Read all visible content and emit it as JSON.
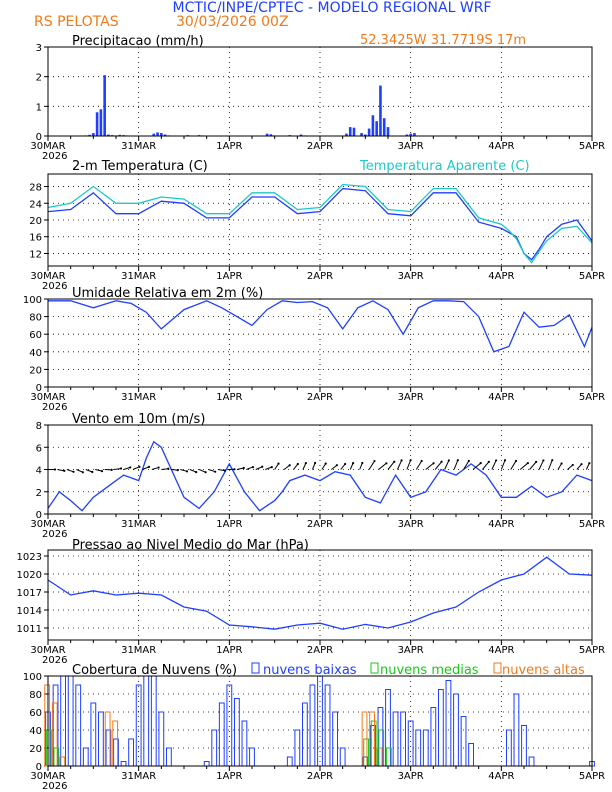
{
  "header": {
    "title": "MCTIC/INPE/CPTEC - MODELO REGIONAL WRF",
    "station": "RS PELOTAS",
    "run": "30/03/2026 00Z",
    "coords": "52.3425W 31.7719S 17m"
  },
  "colors": {
    "title": "#1f3fff",
    "orange": "#f07a1a",
    "blue": "#1f3fff",
    "cyan": "#1ec8c8",
    "green": "#19c819",
    "black": "#000000"
  },
  "chart_data": [
    {
      "type": "bar",
      "title": "Precipitacao (mm/h)",
      "ylim": [
        0,
        3
      ],
      "yticks": [
        0,
        1,
        2,
        3
      ],
      "xticklabels": [
        "30MAR",
        "31MAR",
        "1APR",
        "2APR",
        "3APR",
        "4APR",
        "5APR"
      ],
      "xyear": "2026",
      "x_hours": [
        10,
        11,
        12,
        13,
        14,
        15,
        16,
        17,
        18,
        19,
        20,
        21,
        28,
        29,
        30,
        31,
        32,
        37,
        40,
        41,
        58,
        59,
        60,
        64,
        67,
        68,
        79,
        80,
        81,
        83,
        84,
        85,
        86,
        87,
        88,
        89,
        90,
        95,
        96,
        97
      ],
      "values": [
        0.02,
        0.04,
        0.1,
        0.8,
        0.9,
        2.05,
        0.05,
        0.03,
        0.02,
        0.04,
        0.03,
        0.02,
        0.08,
        0.12,
        0.1,
        0.05,
        0.02,
        0.03,
        0.03,
        0.02,
        0.08,
        0.06,
        0.02,
        0.03,
        0.05,
        0.02,
        0.08,
        0.3,
        0.28,
        0.1,
        0.05,
        0.25,
        0.7,
        0.5,
        1.7,
        0.6,
        0.3,
        0.05,
        0.08,
        0.1
      ]
    },
    {
      "type": "line",
      "title": "2-m Temperatura (C)",
      "legend": "Temperatura Aparente (C)",
      "ylim": [
        9,
        31
      ],
      "yticks": [
        12,
        16,
        20,
        24,
        28
      ],
      "xticklabels": [
        "30MAR",
        "31MAR",
        "1APR",
        "2APR",
        "3APR",
        "4APR",
        "5APR"
      ],
      "xyear": "2026",
      "x_hours": [
        0,
        6,
        12,
        18,
        24,
        30,
        36,
        42,
        48,
        54,
        60,
        66,
        72,
        78,
        84,
        90,
        96,
        102,
        108,
        114,
        120,
        122,
        124,
        126,
        128,
        130,
        132,
        136,
        140,
        144
      ],
      "series": [
        {
          "name": "2-m Temperatura",
          "values": [
            22,
            22.5,
            26.5,
            21.5,
            21.5,
            24.5,
            24,
            20.5,
            20.5,
            25.5,
            25.5,
            21.5,
            22,
            27.5,
            27,
            21.5,
            21,
            26.5,
            26.5,
            19.5,
            18,
            17,
            16,
            12,
            10.5,
            13,
            16,
            19,
            20,
            15
          ]
        },
        {
          "name": "Temperatura Aparente",
          "values": [
            23,
            24,
            28,
            24,
            24,
            25.5,
            25,
            21.5,
            21.5,
            26.5,
            26.5,
            22.5,
            23,
            28.5,
            28,
            22.5,
            22,
            27.5,
            27.5,
            20.5,
            19,
            17.5,
            15.5,
            12,
            9.8,
            12.5,
            15,
            18,
            18.5,
            14.5
          ]
        }
      ]
    },
    {
      "type": "line",
      "title": "Umidade Relativa em 2m (%)",
      "ylim": [
        0,
        100
      ],
      "yticks": [
        0,
        20,
        40,
        60,
        80,
        100
      ],
      "xticklabels": [
        "30MAR",
        "31MAR",
        "1APR",
        "2APR",
        "3APR",
        "4APR",
        "5APR"
      ],
      "xyear": "2026",
      "x_hours": [
        0,
        6,
        12,
        18,
        22,
        26,
        30,
        36,
        42,
        46,
        50,
        54,
        58,
        62,
        66,
        70,
        74,
        78,
        82,
        86,
        90,
        94,
        98,
        102,
        106,
        110,
        114,
        118,
        122,
        126,
        130,
        134,
        138,
        142,
        144
      ],
      "series": [
        {
          "name": "Umidade Relativa",
          "values": [
            98,
            98,
            90,
            98,
            95,
            85,
            66,
            88,
            98,
            90,
            80,
            70,
            88,
            98,
            96,
            97,
            90,
            66,
            90,
            98,
            88,
            60,
            90,
            98,
            98,
            97,
            80,
            40,
            46,
            85,
            68,
            70,
            82,
            46,
            68
          ]
        }
      ]
    },
    {
      "type": "line",
      "title": "Vento em 10m (m/s)",
      "ylim": [
        0,
        8
      ],
      "yticks": [
        0,
        2,
        4,
        6,
        8
      ],
      "xticklabels": [
        "30MAR",
        "31MAR",
        "1APR",
        "2APR",
        "3APR",
        "4APR",
        "5APR"
      ],
      "xyear": "2026",
      "x_hours": [
        0,
        3,
        6,
        9,
        12,
        16,
        20,
        24,
        26,
        28,
        30,
        34,
        36,
        40,
        44,
        48,
        52,
        56,
        60,
        62,
        64,
        68,
        72,
        76,
        80,
        84,
        88,
        92,
        96,
        100,
        104,
        108,
        112,
        116,
        120,
        124,
        128,
        132,
        136,
        140,
        144
      ],
      "series": [
        {
          "name": "Vento 10m",
          "values": [
            0.5,
            2,
            1.2,
            0.3,
            1.5,
            2.5,
            3.5,
            3,
            5,
            6.5,
            6,
            3,
            1.5,
            0.5,
            2,
            4.5,
            2,
            0.3,
            1.2,
            2,
            3,
            3.5,
            3,
            3.8,
            3.5,
            1.5,
            1,
            3.5,
            1.5,
            2,
            4,
            3.5,
            4.5,
            3.5,
            1.5,
            1.5,
            2.5,
            1.5,
            2,
            3.5,
            3
          ]
        }
      ]
    },
    {
      "type": "line",
      "title": "Pressao ao Nivel Medio do Mar (hPa)",
      "ylim": [
        1009,
        1024
      ],
      "yticks": [
        1011,
        1014,
        1017,
        1020,
        1023
      ],
      "xticklabels": [
        "30MAR",
        "31MAR",
        "1APR",
        "2APR",
        "3APR",
        "4APR",
        "5APR"
      ],
      "xyear": "2026",
      "x_hours": [
        0,
        6,
        12,
        18,
        24,
        30,
        36,
        42,
        48,
        54,
        60,
        66,
        72,
        78,
        84,
        90,
        96,
        102,
        108,
        114,
        120,
        126,
        132,
        138,
        144
      ],
      "series": [
        {
          "name": "Pressao",
          "values": [
            1019,
            1016.5,
            1017.2,
            1016.5,
            1016.8,
            1016.5,
            1014.5,
            1013.8,
            1011.5,
            1011.2,
            1010.8,
            1011.5,
            1011.8,
            1010.8,
            1011.6,
            1011,
            1012,
            1013.5,
            1014.5,
            1017,
            1019,
            1020,
            1022.8,
            1020,
            1019.8
          ]
        }
      ]
    },
    {
      "type": "bar",
      "title": "Cobertura de Nuvens (%)",
      "legend": [
        "nuvens baixas",
        "nuvens medias",
        "nuvens altas"
      ],
      "ylim": [
        0,
        100
      ],
      "yticks": [
        0,
        20,
        40,
        60,
        80,
        100
      ],
      "xticklabels": [
        "30MAR",
        "31MAR",
        "1APR",
        "2APR",
        "3APR",
        "4APR",
        "5APR"
      ],
      "xyear": "2026",
      "x_hours": [
        0,
        2,
        4,
        6,
        8,
        10,
        12,
        14,
        16,
        18,
        20,
        22,
        24,
        26,
        28,
        30,
        32,
        34,
        36,
        38,
        40,
        42,
        44,
        46,
        48,
        50,
        52,
        54,
        56,
        58,
        60,
        62,
        64,
        66,
        68,
        70,
        72,
        74,
        76,
        78,
        80,
        82,
        84,
        86,
        88,
        90,
        92,
        94,
        96,
        98,
        100,
        102,
        104,
        106,
        108,
        110,
        112,
        114,
        116,
        118,
        120,
        122,
        124,
        126,
        128,
        130,
        132,
        134,
        136,
        138,
        140,
        142,
        144
      ],
      "series": [
        {
          "name": "nuvens baixas",
          "values": [
            60,
            90,
            100,
            100,
            90,
            20,
            70,
            60,
            40,
            30,
            5,
            30,
            90,
            100,
            100,
            60,
            20,
            0,
            0,
            0,
            0,
            5,
            40,
            70,
            90,
            75,
            50,
            20,
            0,
            0,
            0,
            0,
            10,
            40,
            70,
            90,
            100,
            90,
            60,
            20,
            0,
            0,
            10,
            45,
            65,
            85,
            60,
            60,
            50,
            40,
            40,
            65,
            85,
            95,
            80,
            55,
            25,
            0,
            0,
            0,
            0,
            40,
            80,
            45,
            10,
            0,
            0,
            0,
            0,
            0,
            0,
            0,
            5
          ]
        },
        {
          "name": "nuvens medias",
          "values": [
            40,
            20,
            0,
            0,
            0,
            0,
            0,
            0,
            0,
            0,
            0,
            0,
            0,
            0,
            0,
            0,
            0,
            0,
            0,
            0,
            0,
            0,
            0,
            0,
            0,
            0,
            0,
            0,
            0,
            0,
            0,
            0,
            0,
            0,
            0,
            0,
            0,
            0,
            0,
            0,
            0,
            0,
            30,
            50,
            40,
            20,
            0,
            0,
            0,
            0,
            0,
            0,
            0,
            0,
            0,
            0,
            0,
            0,
            0,
            0,
            0,
            0,
            0,
            0,
            0,
            0,
            0,
            0,
            0,
            0,
            0,
            0,
            0
          ]
        },
        {
          "name": "nuvens altas",
          "values": [
            90,
            70,
            10,
            0,
            0,
            0,
            0,
            0,
            60,
            50,
            0,
            0,
            0,
            0,
            0,
            0,
            0,
            0,
            0,
            0,
            0,
            0,
            0,
            0,
            0,
            0,
            0,
            0,
            0,
            0,
            0,
            0,
            0,
            0,
            0,
            0,
            0,
            0,
            0,
            0,
            0,
            0,
            60,
            60,
            20,
            0,
            0,
            0,
            0,
            0,
            0,
            0,
            0,
            0,
            0,
            0,
            0,
            0,
            0,
            0,
            0,
            0,
            0,
            0,
            0,
            0,
            0,
            0,
            0,
            0,
            0,
            0,
            0
          ]
        }
      ]
    }
  ]
}
